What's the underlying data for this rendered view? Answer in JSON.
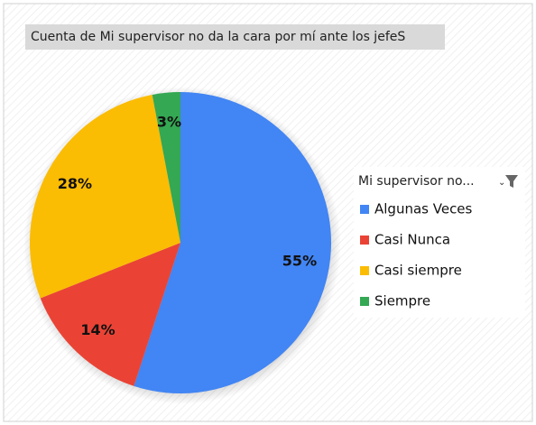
{
  "chart_data": {
    "type": "pie",
    "title": "Cuenta de Mi supervisor no da la cara por mí ante los jefeS",
    "legend_title": "Mi supervisor no...",
    "categories": [
      "Algunas Veces",
      "Casi Nunca",
      "Casi siempre",
      "Siempre"
    ],
    "values": [
      55,
      14,
      28,
      3
    ],
    "value_labels": [
      "55%",
      "14%",
      "28%",
      "3%"
    ],
    "colors": [
      "#4285f4",
      "#ea4335",
      "#fbbc04",
      "#34a853"
    ],
    "legend": "right"
  }
}
